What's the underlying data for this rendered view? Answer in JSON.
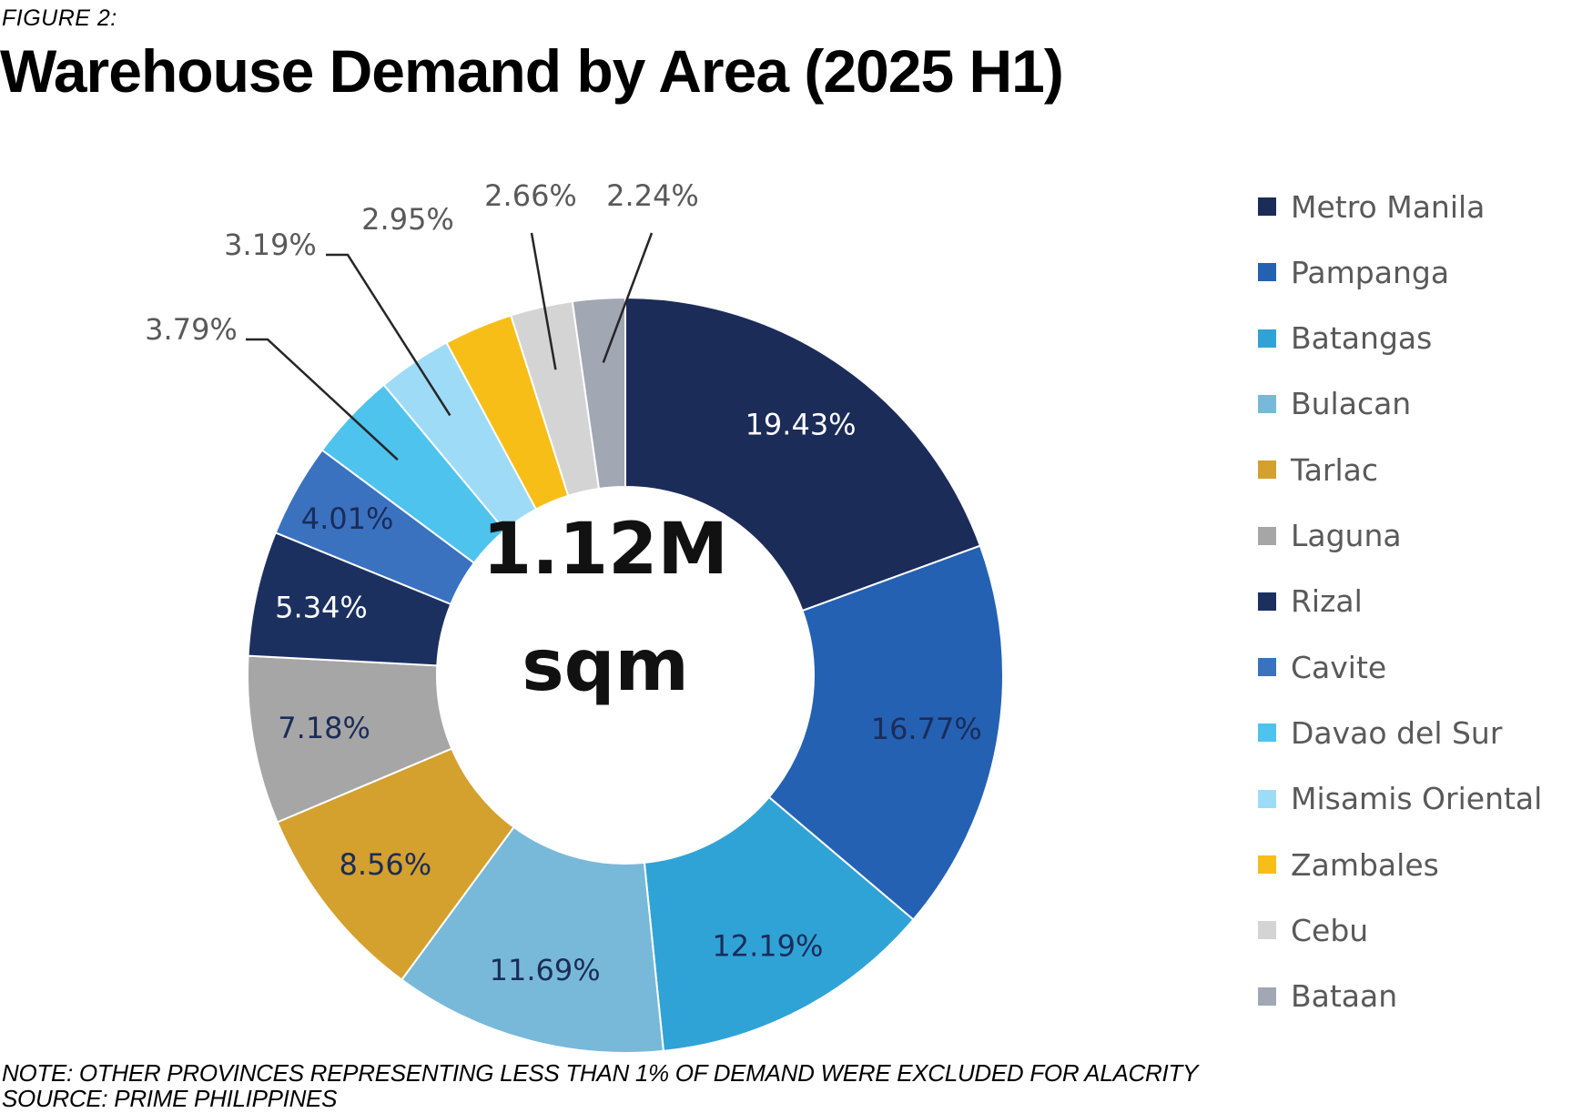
{
  "figure_label": "FIGURE 2:",
  "title": "Warehouse Demand by Area (2025 H1)",
  "center": {
    "line1": "1.12M",
    "line2": "sqm"
  },
  "footer": {
    "note": "NOTE: OTHER PROVINCES REPRESENTING LESS THAN 1% OF DEMAND WERE EXCLUDED FOR ALACRITY",
    "source": "SOURCE: PRIME PHILIPPINES"
  },
  "chart_data": {
    "type": "pie",
    "variant": "donut",
    "legend_position": "right",
    "slices": [
      {
        "name": "Metro Manila",
        "value": 19.43,
        "label": "19.43%",
        "color": "#1b2c59",
        "label_color": "#ffffff"
      },
      {
        "name": "Pampanga",
        "value": 16.77,
        "label": "16.77%",
        "color": "#2461b3",
        "label_color": "#1b2c59"
      },
      {
        "name": "Batangas",
        "value": 12.19,
        "label": "12.19%",
        "color": "#30a3d6",
        "label_color": "#1b2c59"
      },
      {
        "name": "Bulacan",
        "value": 11.69,
        "label": "11.69%",
        "color": "#78b9d9",
        "label_color": "#1b2c59"
      },
      {
        "name": "Tarlac",
        "value": 8.56,
        "label": "8.56%",
        "color": "#d4a02e",
        "label_color": "#1b2c59"
      },
      {
        "name": "Laguna",
        "value": 7.18,
        "label": "7.18%",
        "color": "#a6a6a6",
        "label_color": "#1b2c59"
      },
      {
        "name": "Rizal",
        "value": 5.34,
        "label": "5.34%",
        "color": "#1c3060",
        "label_color": "#ffffff"
      },
      {
        "name": "Cavite",
        "value": 4.01,
        "label": "4.01%",
        "color": "#3a72bf",
        "label_color": "#1b2c59"
      },
      {
        "name": "Davao del Sur",
        "value": 3.79,
        "label": "3.79%",
        "color": "#4ec3ee",
        "label_color": "#595959"
      },
      {
        "name": "Misamis Oriental",
        "value": 3.19,
        "label": "3.19%",
        "color": "#9edbf7",
        "label_color": "#595959"
      },
      {
        "name": "Zambales",
        "value": 2.95,
        "label": "2.95%",
        "color": "#f8be18",
        "label_color": "#595959"
      },
      {
        "name": "Cebu",
        "value": 2.66,
        "label": "2.66%",
        "color": "#d4d4d4",
        "label_color": "#595959"
      },
      {
        "name": "Bataan",
        "value": 2.24,
        "label": "2.24%",
        "color": "#a1a7b3",
        "label_color": "#595959"
      }
    ]
  }
}
